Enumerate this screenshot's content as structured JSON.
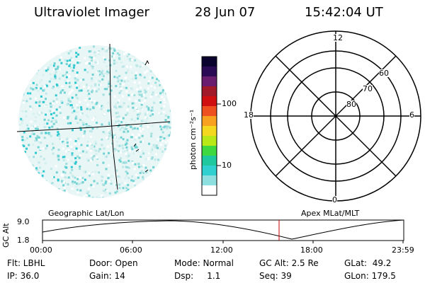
{
  "header": {
    "instrument": "Ultraviolet Imager",
    "date": "28 Jun 07",
    "time": "15:42:04 UT"
  },
  "colorbar": {
    "label": "photon cm⁻²s⁻¹",
    "tick_100": "100",
    "tick_10": "10",
    "colors": [
      "#0a0330",
      "#2b0a55",
      "#6a1d6e",
      "#a01a2a",
      "#d01010",
      "#ee5020",
      "#f8a020",
      "#f4d820",
      "#b8e818",
      "#40d840",
      "#20c8a0",
      "#30d0d0",
      "#8ee0e0",
      "#ffffff"
    ]
  },
  "polar": {
    "labels": {
      "top": "12",
      "bottom": "0",
      "left": "18",
      "right": "6"
    },
    "rings": [
      "60",
      "70",
      "80"
    ]
  },
  "timeline": {
    "y_label": "GC Alt",
    "y_top": "9.0",
    "y_bottom": "1.8",
    "left_caption": "Geographic Lat/Lon",
    "right_caption": "Apex MLat/MLT",
    "ticks": [
      "00:00",
      "06:00",
      "12:00",
      "18:00",
      "23:59"
    ]
  },
  "info": {
    "row1": {
      "flt": "Flt: LBHL",
      "door": "Door: Open",
      "mode": "Mode: Normal",
      "gcalt": "GC Alt: 2.5 Re",
      "glat": "GLat:  49.2"
    },
    "row2": {
      "ip": "IP: 36.0",
      "gain": "Gain: 14",
      "dsp": "Dsp:     1.1",
      "seq": "Seq: 39",
      "glon": "GLon: 179.5"
    }
  }
}
